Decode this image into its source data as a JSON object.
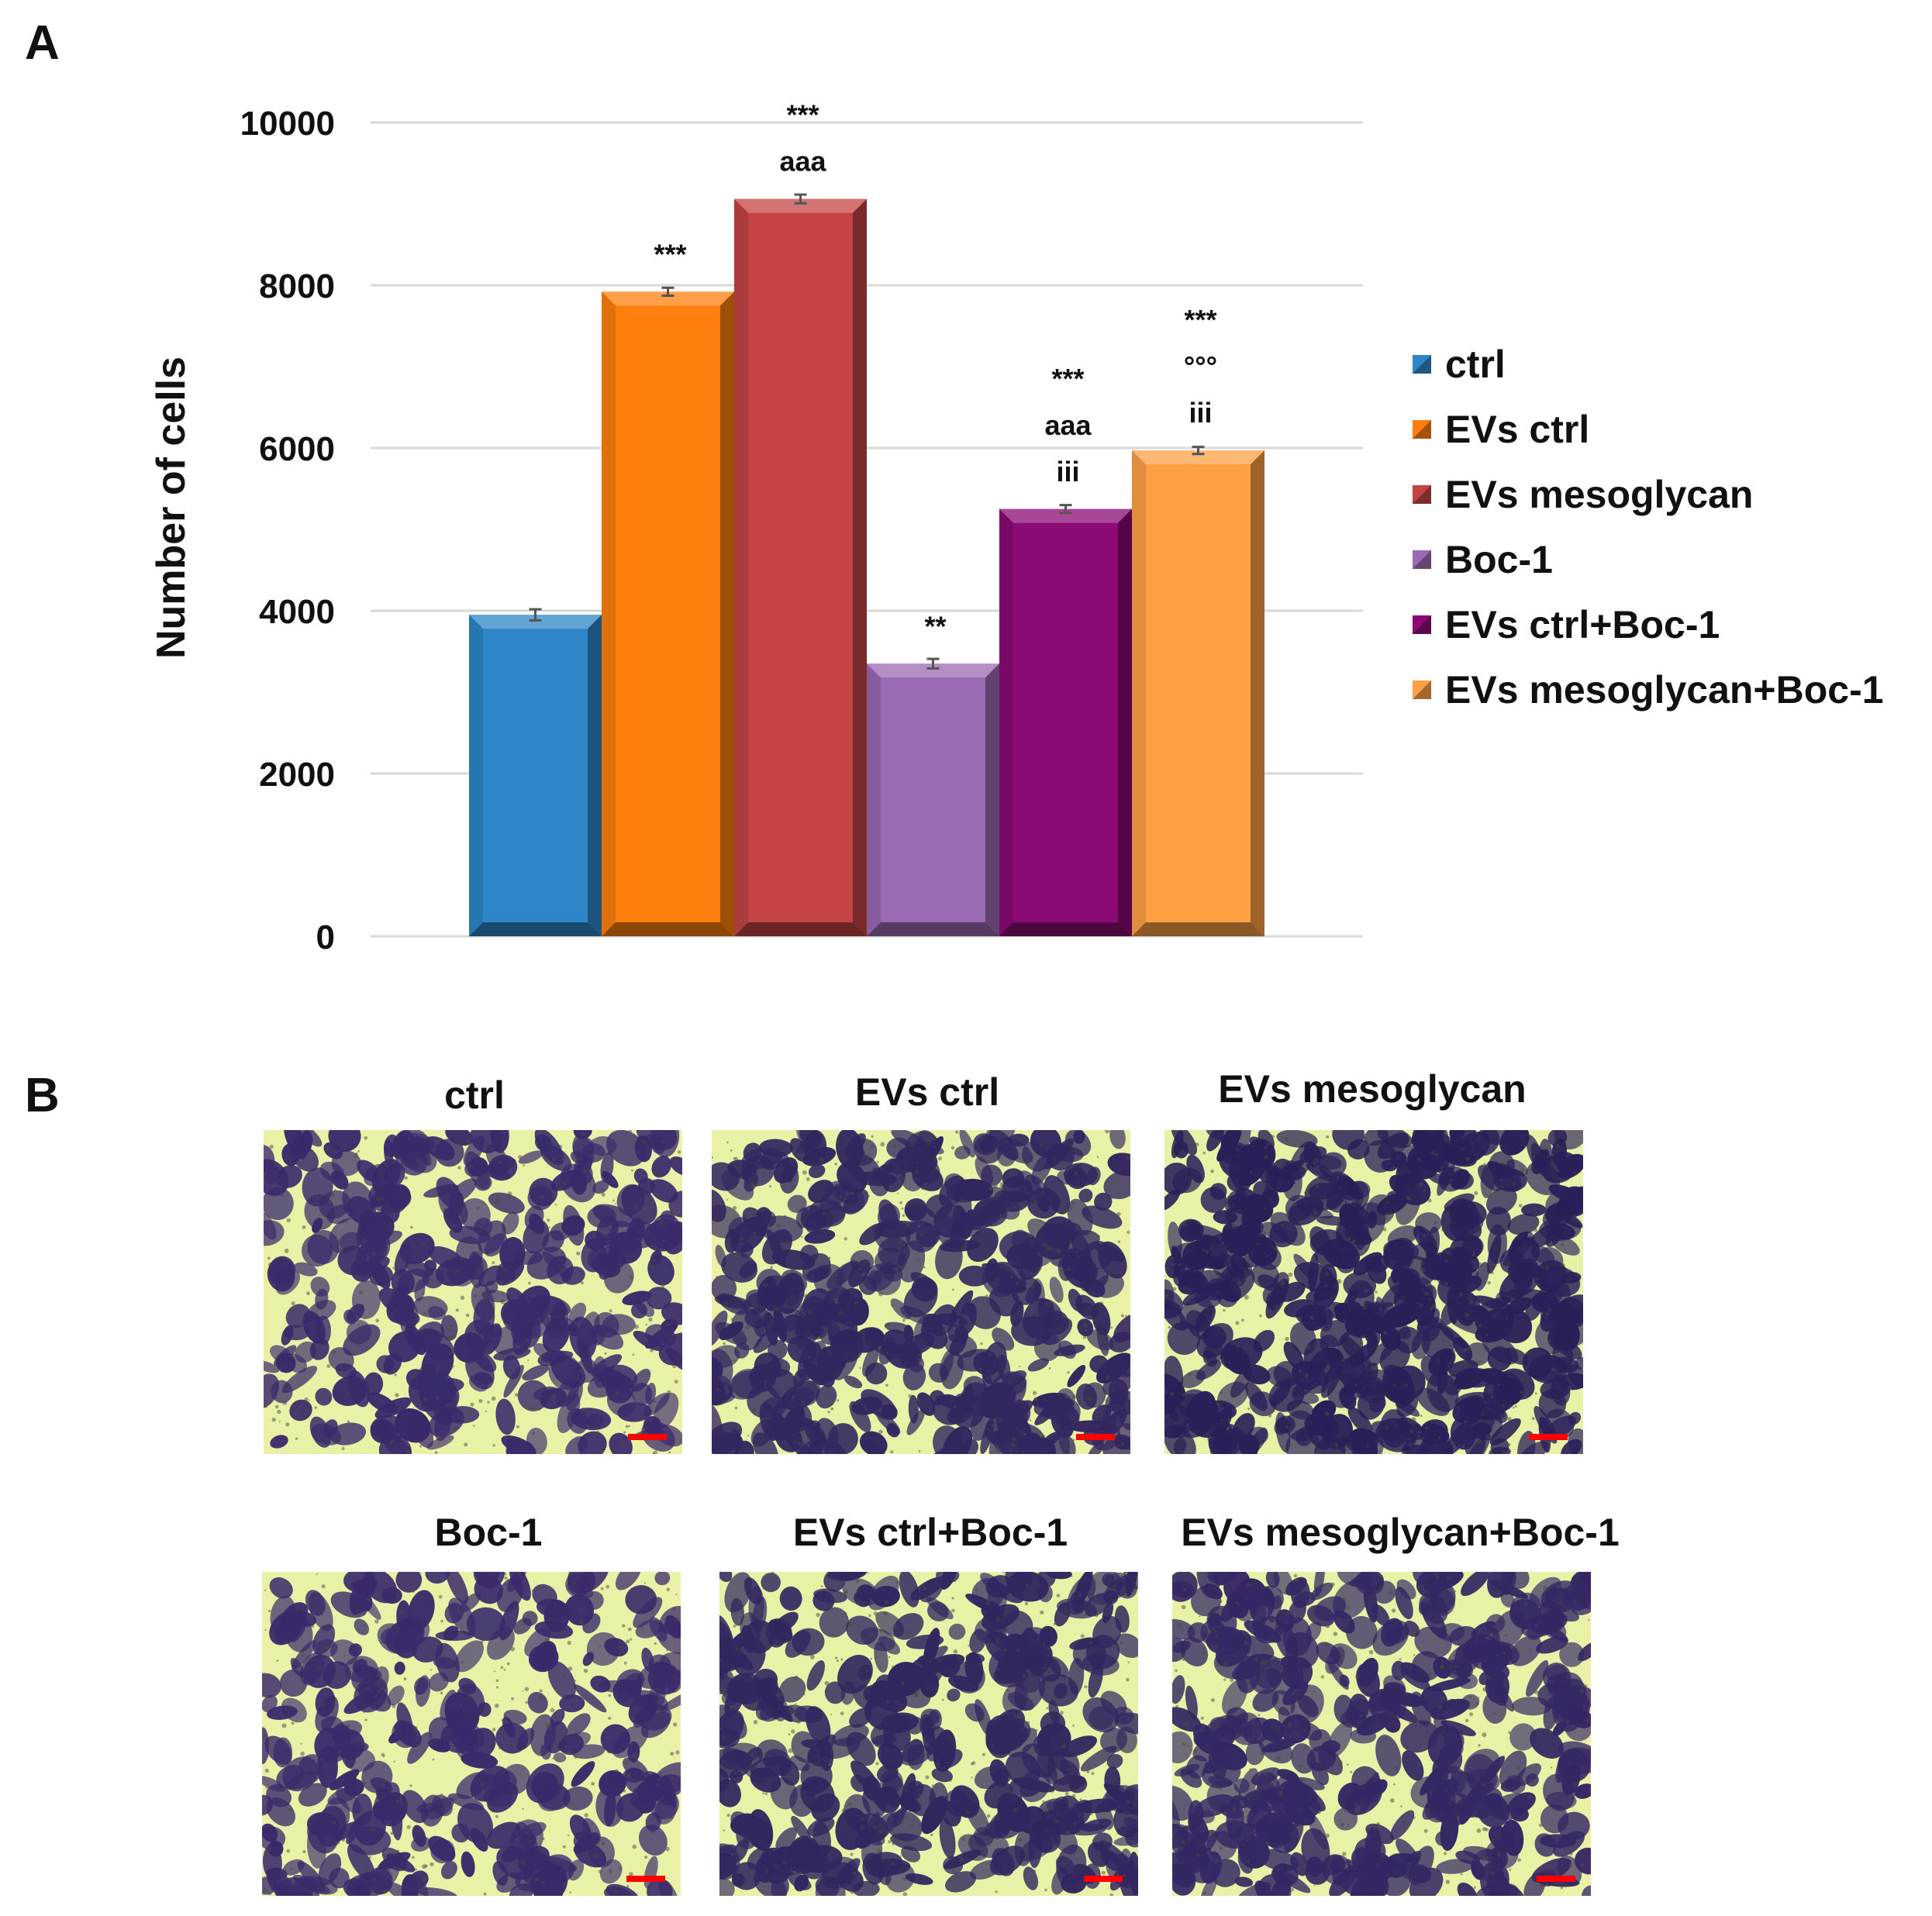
{
  "panel_a_label": "A",
  "panel_b_label": "B",
  "chart_data": {
    "type": "bar",
    "title": "",
    "xlabel": "",
    "ylabel": "Number of cells",
    "ylim": [
      0,
      10000
    ],
    "yticks": [
      "0",
      "2000",
      "4000",
      "6000",
      "8000",
      "10000"
    ],
    "ytick_values": [
      0,
      2000,
      4000,
      6000,
      8000,
      10000
    ],
    "grid": true,
    "legend_position": "right",
    "categories": [
      "ctrl",
      "EVs ctrl",
      "EVs mesoglycan",
      "Boc-1",
      "EVs ctrl+Boc-1",
      "EVs mesoglycan+Boc-1"
    ],
    "values": [
      3950,
      7920,
      9060,
      3350,
      5250,
      5970
    ],
    "errors": [
      40,
      20,
      25,
      30,
      20,
      15
    ],
    "colors": [
      "#2e86c8",
      "#ff7f0e",
      "#c44444",
      "#9a6ab3",
      "#8b0a74",
      "#ffa045"
    ],
    "annotations": [
      [],
      [
        "***"
      ],
      [
        "***",
        "aaa"
      ],
      [
        "**"
      ],
      [
        "***",
        "aaa",
        "iii"
      ],
      [
        "***",
        "°°°",
        "iii"
      ]
    ]
  },
  "images": [
    {
      "title": "ctrl",
      "stain_color": "#3a2a6a",
      "density": 0.45
    },
    {
      "title": "EVs ctrl",
      "stain_color": "#33265f",
      "density": 0.62
    },
    {
      "title": "EVs mesoglycan",
      "stain_color": "#2b1f58",
      "density": 0.78
    },
    {
      "title": "Boc-1",
      "stain_color": "#3a2a6a",
      "density": 0.4
    },
    {
      "title": "EVs ctrl+Boc-1",
      "stain_color": "#33265f",
      "density": 0.55
    },
    {
      "title": "EVs mesoglycan+Boc-1",
      "stain_color": "#352763",
      "density": 0.58
    }
  ],
  "scale_bar_color": "#ff0000"
}
